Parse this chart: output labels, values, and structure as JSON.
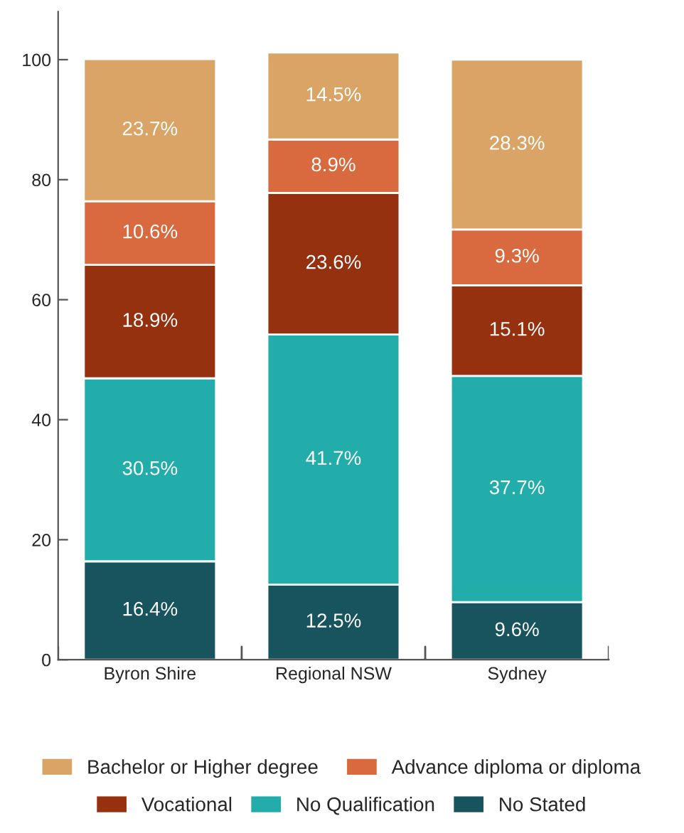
{
  "chart_data": {
    "type": "bar",
    "stacked": true,
    "grid": false,
    "legend": "bottom",
    "categories": [
      "Byron Shire",
      "Regional NSW",
      "Sydney"
    ],
    "ylim": [
      0,
      108
    ],
    "yticks": [
      0,
      20,
      40,
      60,
      80,
      100
    ],
    "series": [
      {
        "name": "No Stated",
        "color": "#18545e",
        "values": [
          16.4,
          12.5,
          9.6
        ],
        "value_labels": [
          "16.4%",
          "12.5%",
          "9.6%"
        ]
      },
      {
        "name": "No Qualification",
        "color": "#22adab",
        "values": [
          30.5,
          41.7,
          37.7
        ],
        "value_labels": [
          "30.5%",
          "41.7%",
          "37.7%"
        ]
      },
      {
        "name": "Vocational",
        "color": "#96310f",
        "values": [
          18.9,
          23.6,
          15.1
        ],
        "value_labels": [
          "18.9%",
          "23.6%",
          "15.1%"
        ]
      },
      {
        "name": "Advance diploma or diploma",
        "color": "#d9693e",
        "values": [
          10.6,
          8.9,
          9.3
        ],
        "value_labels": [
          "10.6%",
          "8.9%",
          "9.3%"
        ]
      },
      {
        "name": "Bachelor or Higher degree",
        "color": "#d9a465",
        "values": [
          23.7,
          14.5,
          28.3
        ],
        "value_labels": [
          "23.7%",
          "14.5%",
          "28.3%"
        ]
      }
    ]
  }
}
